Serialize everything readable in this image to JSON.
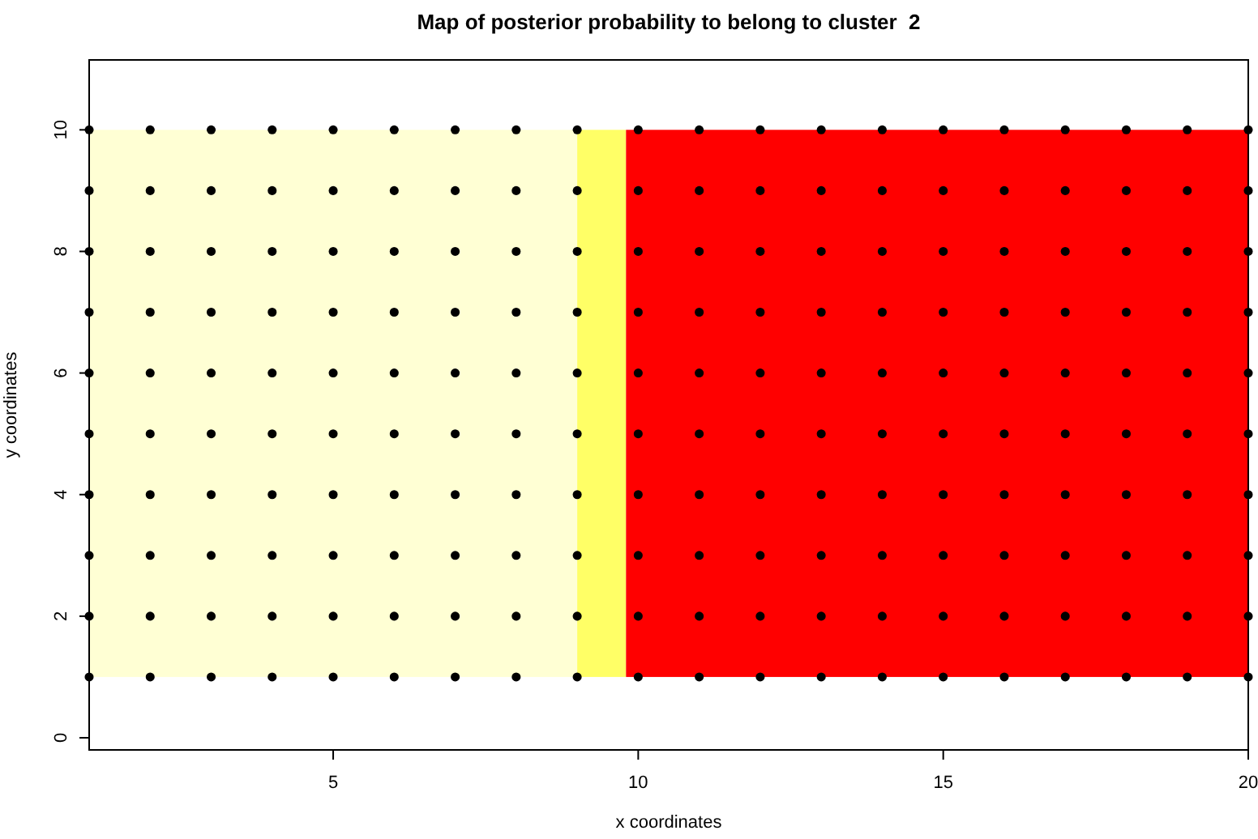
{
  "chart_data": {
    "type": "scatter",
    "title": "Map of posterior probability to belong to cluster  2",
    "xlabel": "x coordinates",
    "ylabel": "y coordinates",
    "xlim": [
      1,
      20
    ],
    "ylim": [
      -0.2,
      11.15
    ],
    "xticks": [
      5,
      10,
      15,
      20
    ],
    "yticks": [
      0,
      2,
      4,
      6,
      8,
      10
    ],
    "grid": false,
    "marker": "circle",
    "bands": [
      {
        "axis": "x",
        "from": 1,
        "to": 9,
        "color": "#ffffd4"
      },
      {
        "axis": "x",
        "from": 9,
        "to": 9.8,
        "color": "#ffff66"
      },
      {
        "axis": "x",
        "from": 9.8,
        "to": 20,
        "color": "#ff0000"
      }
    ],
    "series": [
      {
        "color": "#000000",
        "x": [
          1,
          2,
          3,
          4,
          5,
          6,
          7,
          8,
          9,
          10,
          11,
          12,
          13,
          14,
          15,
          16,
          17,
          18,
          19,
          20,
          1,
          2,
          3,
          4,
          5,
          6,
          7,
          8,
          9,
          10,
          11,
          12,
          13,
          14,
          15,
          16,
          17,
          18,
          19,
          20,
          1,
          2,
          3,
          4,
          5,
          6,
          7,
          8,
          9,
          10,
          11,
          12,
          13,
          14,
          15,
          16,
          17,
          18,
          19,
          20,
          1,
          2,
          3,
          4,
          5,
          6,
          7,
          8,
          9,
          10,
          11,
          12,
          13,
          14,
          15,
          16,
          17,
          18,
          19,
          20,
          1,
          2,
          3,
          4,
          5,
          6,
          7,
          8,
          9,
          10,
          11,
          12,
          13,
          14,
          15,
          16,
          17,
          18,
          19,
          20,
          1,
          2,
          3,
          4,
          5,
          6,
          7,
          8,
          9,
          10,
          11,
          12,
          13,
          14,
          15,
          16,
          17,
          18,
          19,
          20,
          1,
          2,
          3,
          4,
          5,
          6,
          7,
          8,
          9,
          10,
          11,
          12,
          13,
          14,
          15,
          16,
          17,
          18,
          19,
          20,
          1,
          2,
          3,
          4,
          5,
          6,
          7,
          8,
          9,
          10,
          11,
          12,
          13,
          14,
          15,
          16,
          17,
          18,
          19,
          20,
          1,
          2,
          3,
          4,
          5,
          6,
          7,
          8,
          9,
          10,
          11,
          12,
          13,
          14,
          15,
          16,
          17,
          18,
          19,
          20,
          1,
          2,
          3,
          4,
          5,
          6,
          7,
          8,
          9,
          10,
          11,
          12,
          13,
          14,
          15,
          16,
          17,
          18,
          19,
          20
        ],
        "values": [
          1,
          1,
          1,
          1,
          1,
          1,
          1,
          1,
          1,
          1,
          1,
          1,
          1,
          1,
          1,
          1,
          1,
          1,
          1,
          1,
          2,
          2,
          2,
          2,
          2,
          2,
          2,
          2,
          2,
          2,
          2,
          2,
          2,
          2,
          2,
          2,
          2,
          2,
          2,
          2,
          3,
          3,
          3,
          3,
          3,
          3,
          3,
          3,
          3,
          3,
          3,
          3,
          3,
          3,
          3,
          3,
          3,
          3,
          3,
          3,
          4,
          4,
          4,
          4,
          4,
          4,
          4,
          4,
          4,
          4,
          4,
          4,
          4,
          4,
          4,
          4,
          4,
          4,
          4,
          4,
          5,
          5,
          5,
          5,
          5,
          5,
          5,
          5,
          5,
          5,
          5,
          5,
          5,
          5,
          5,
          5,
          5,
          5,
          5,
          5,
          6,
          6,
          6,
          6,
          6,
          6,
          6,
          6,
          6,
          6,
          6,
          6,
          6,
          6,
          6,
          6,
          6,
          6,
          6,
          6,
          7,
          7,
          7,
          7,
          7,
          7,
          7,
          7,
          7,
          7,
          7,
          7,
          7,
          7,
          7,
          7,
          7,
          7,
          7,
          7,
          8,
          8,
          8,
          8,
          8,
          8,
          8,
          8,
          8,
          8,
          8,
          8,
          8,
          8,
          8,
          8,
          8,
          8,
          8,
          8,
          9,
          9,
          9,
          9,
          9,
          9,
          9,
          9,
          9,
          9,
          9,
          9,
          9,
          9,
          9,
          9,
          9,
          9,
          9,
          9,
          10,
          10,
          10,
          10,
          10,
          10,
          10,
          10,
          10,
          10,
          10,
          10,
          10,
          10,
          10,
          10,
          10,
          10,
          10,
          10
        ]
      }
    ]
  }
}
